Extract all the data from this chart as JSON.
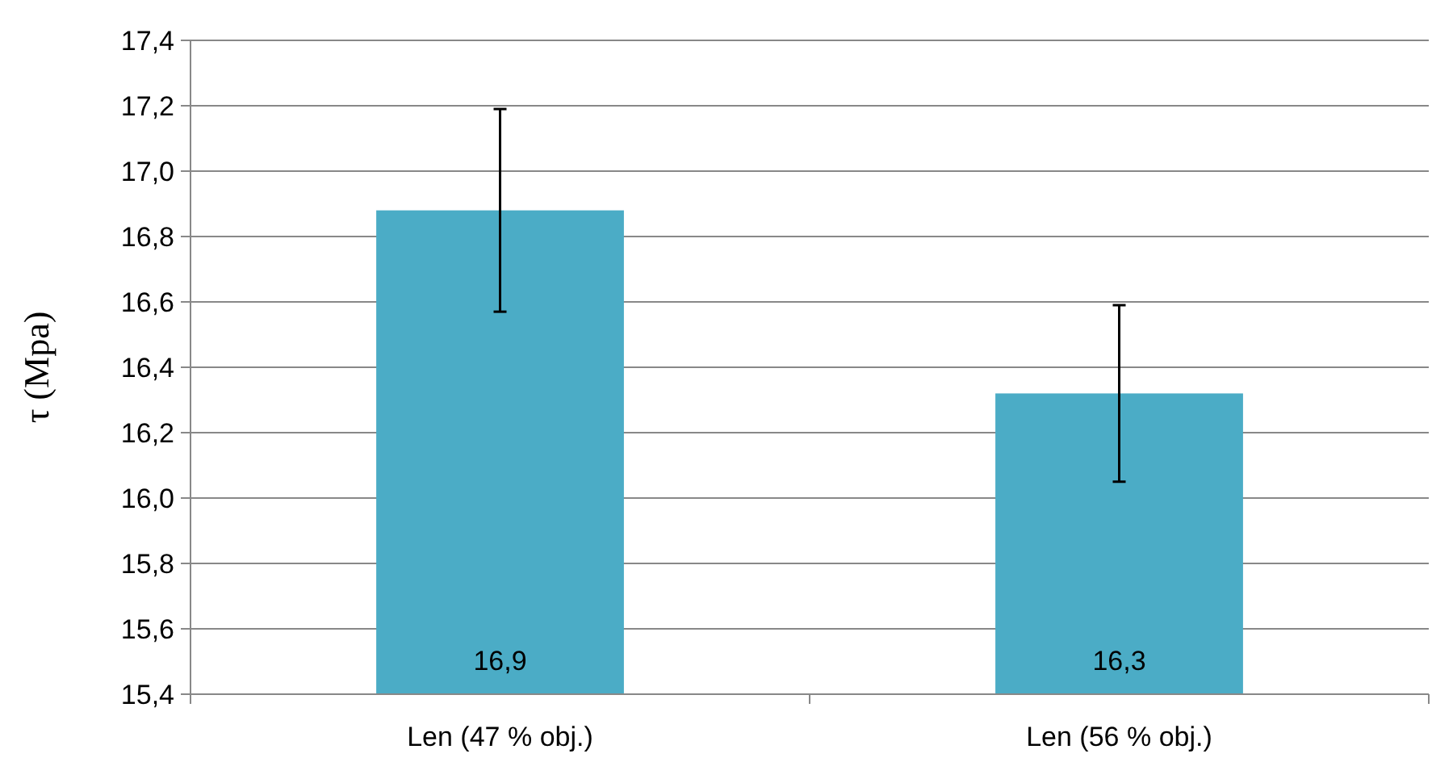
{
  "chart_data": {
    "type": "bar",
    "ylabel": "τ (Mpa)",
    "categories": [
      "Len (47 % obj.)",
      "Len (56 % obj.)"
    ],
    "values": [
      16.88,
      16.32
    ],
    "color": "#4bacc6",
    "errors": [
      0.31,
      0.27
    ],
    "value_labels": [
      "16,9",
      "16,3"
    ],
    "ylim": [
      15.4,
      17.4
    ],
    "yticks": [
      {
        "value": 15.4,
        "label": "15,4"
      },
      {
        "value": 15.6,
        "label": "15,6"
      },
      {
        "value": 15.8,
        "label": "15,8"
      },
      {
        "value": 16.0,
        "label": "16,0"
      },
      {
        "value": 16.2,
        "label": "16,2"
      },
      {
        "value": 16.4,
        "label": "16,4"
      },
      {
        "value": 16.6,
        "label": "16,6"
      },
      {
        "value": 16.8,
        "label": "16,8"
      },
      {
        "value": 17.0,
        "label": "17,0"
      },
      {
        "value": 17.2,
        "label": "17,2"
      },
      {
        "value": 17.4,
        "label": "17,4"
      }
    ],
    "grid": "y"
  }
}
